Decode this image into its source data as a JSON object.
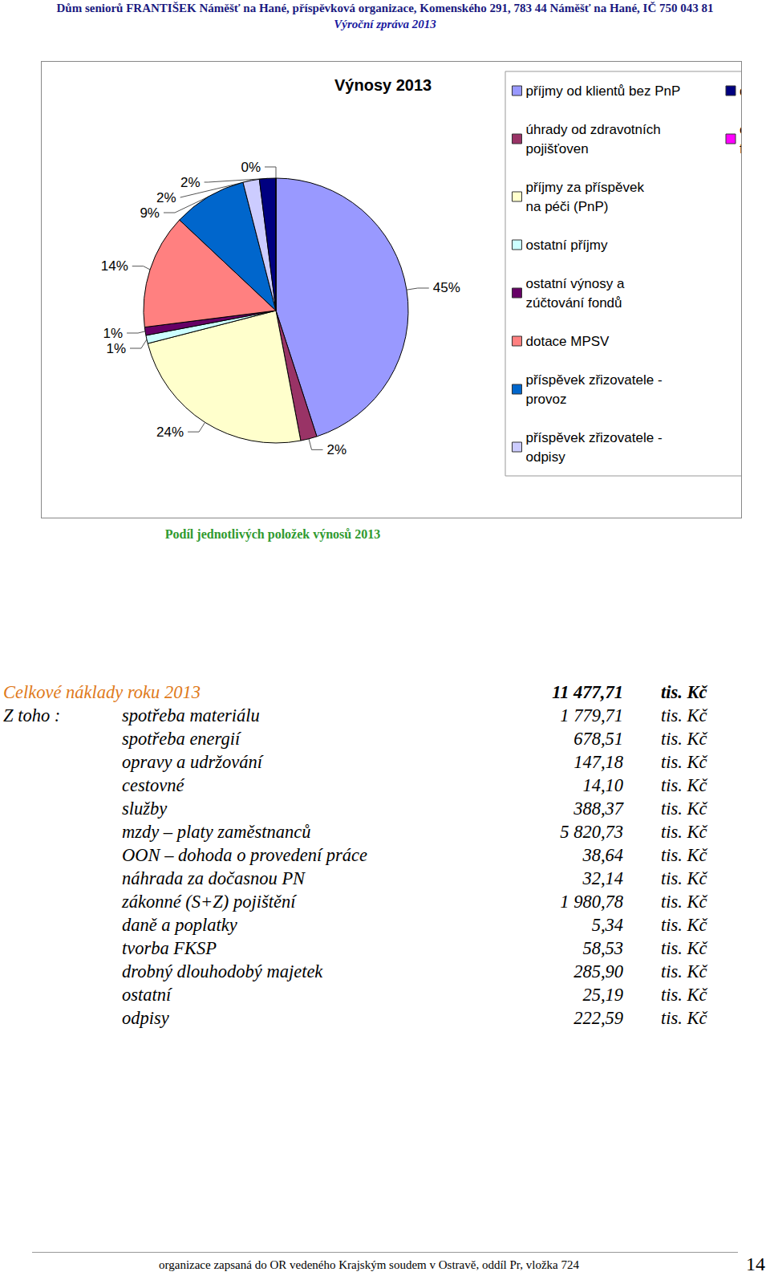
{
  "header": {
    "title": "Dům seniorů FRANTIŠEK Náměšť na Hané, příspěvková organizace, Komenského 291, 783 44 Náměšť na Hané, IČ 750 043 81",
    "subtitle": "Výroční zpráva 2013"
  },
  "chart_data": {
    "type": "pie",
    "title": "Výnosy 2013",
    "caption": "Podíl jednotlivých položek výnosů 2013",
    "categories": [
      "příjmy od klientů bez PnP",
      "úhrady od zdravotních pojišťoven",
      "příjmy za příspěvek na péči (PnP)",
      "ostatní příjmy",
      "ostatní výnosy a zúčtování fondů",
      "dotace MPSV",
      "příspěvek zřizovatele - provoz",
      "příspěvek zřizovatele - odpisy",
      "dotace ÚP - SÚPM",
      "ostatní dotace - stáže ve firmách"
    ],
    "values": [
      45,
      2,
      24,
      1,
      1,
      14,
      9,
      2,
      2,
      0
    ],
    "value_labels": [
      "45%",
      "2%",
      "24%",
      "1%",
      "1%",
      "14%",
      "9%",
      "2%",
      "2%",
      "0%"
    ],
    "colors": [
      "#9999ff",
      "#993366",
      "#ffffcc",
      "#ccffff",
      "#660066",
      "#ff8080",
      "#0066cc",
      "#ccccff",
      "#000080",
      "#ff00ff"
    ],
    "data_labels": true,
    "legend": "right"
  },
  "costs": {
    "title": "Celkové náklady roku 2013",
    "total": "11 477,71",
    "total_unit": "tis. Kč",
    "prefix": "Z toho :",
    "rows": [
      [
        "spotřeba materiálu",
        "1 779,71",
        "tis. Kč"
      ],
      [
        "spotřeba energií",
        "678,51",
        "tis. Kč"
      ],
      [
        "opravy a udržování",
        "147,18",
        "tis. Kč"
      ],
      [
        "cestovné",
        "14,10",
        "tis. Kč"
      ],
      [
        "služby",
        "388,37",
        "tis. Kč"
      ],
      [
        "mzdy – platy zaměstnanců",
        "5 820,73",
        "tis. Kč"
      ],
      [
        "OON – dohoda o provedení práce",
        "38,64",
        "tis. Kč"
      ],
      [
        "náhrada za dočasnou PN",
        "32,14",
        "tis. Kč"
      ],
      [
        "zákonné (S+Z) pojištění",
        "1 980,78",
        "tis. Kč"
      ],
      [
        "daně a poplatky",
        "5,34",
        "tis. Kč"
      ],
      [
        "tvorba FKSP",
        "58,53",
        "tis. Kč"
      ],
      [
        "drobný dlouhodobý majetek",
        "285,90",
        "tis. Kč"
      ],
      [
        "ostatní",
        "25,19",
        "tis. Kč"
      ],
      [
        "odpisy",
        "222,59",
        "tis. Kč"
      ]
    ]
  },
  "footer": {
    "text": "organizace zapsaná do OR vedeného Krajským soudem v Ostravě, oddíl Pr, vložka 724",
    "page": "14"
  }
}
